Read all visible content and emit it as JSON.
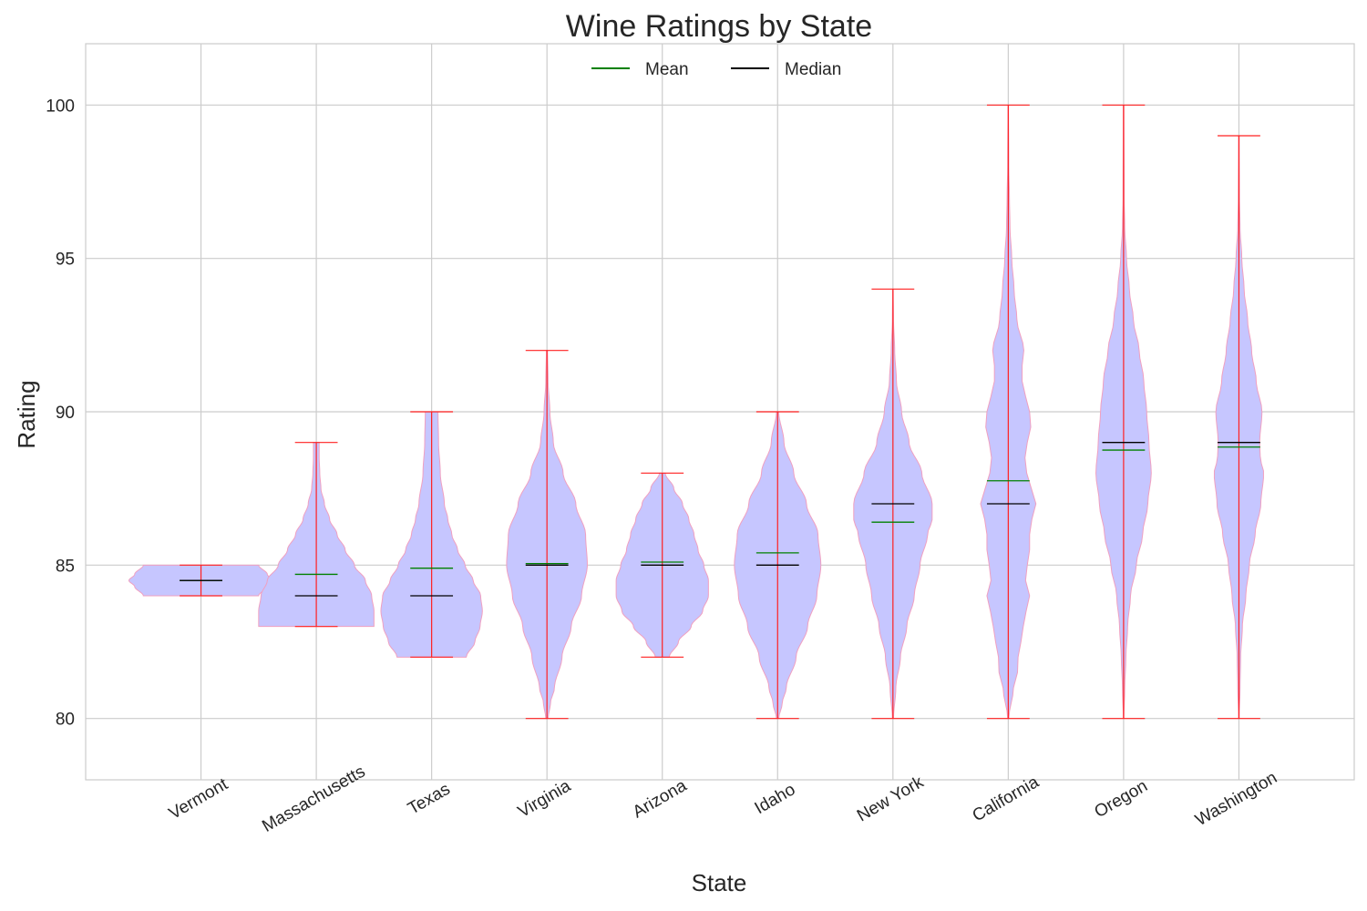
{
  "chart_data": {
    "type": "violin",
    "title": "Wine Ratings by State",
    "xlabel": "State",
    "ylabel": "Rating",
    "ylim": [
      78,
      102
    ],
    "yticks": [
      80,
      85,
      90,
      95,
      100
    ],
    "grid": true,
    "legend": {
      "placement": "top-center",
      "entries": [
        {
          "label": "Mean",
          "color": "#008000"
        },
        {
          "label": "Median",
          "color": "#000000"
        }
      ]
    },
    "colors": {
      "body_fill": "#c6c6ff",
      "body_edge": "#f0a0c0",
      "extrema": "#ff2020",
      "mean": "#008000",
      "median": "#000000",
      "grid": "#cccccc"
    },
    "categories": [
      "Vermont",
      "Massachusetts",
      "Texas",
      "Virginia",
      "Arizona",
      "Idaho",
      "New York",
      "California",
      "Oregon",
      "Washington"
    ],
    "series": [
      {
        "min": 84,
        "max": 85,
        "mean": 84.5,
        "median": 84.5,
        "density": [
          [
            84.0,
            1.0
          ],
          [
            84.3,
            1.15
          ],
          [
            84.5,
            1.25
          ],
          [
            84.7,
            1.15
          ],
          [
            85.0,
            1.0
          ]
        ]
      },
      {
        "min": 83,
        "max": 89,
        "mean": 84.7,
        "median": 84,
        "density": [
          [
            83.0,
            1.0
          ],
          [
            83.5,
            1.0
          ],
          [
            84.0,
            0.96
          ],
          [
            84.5,
            0.85
          ],
          [
            85.0,
            0.66
          ],
          [
            85.5,
            0.5
          ],
          [
            86.0,
            0.36
          ],
          [
            86.5,
            0.23
          ],
          [
            87.0,
            0.14
          ],
          [
            87.5,
            0.08
          ],
          [
            88.0,
            0.06
          ],
          [
            88.5,
            0.05
          ],
          [
            89.0,
            0.05
          ]
        ]
      },
      {
        "min": 82,
        "max": 90,
        "mean": 84.9,
        "median": 84,
        "density": [
          [
            82.0,
            0.6
          ],
          [
            82.5,
            0.75
          ],
          [
            83.0,
            0.84
          ],
          [
            83.5,
            0.88
          ],
          [
            84.0,
            0.85
          ],
          [
            84.5,
            0.72
          ],
          [
            85.0,
            0.58
          ],
          [
            85.5,
            0.45
          ],
          [
            86.0,
            0.35
          ],
          [
            86.5,
            0.28
          ],
          [
            87.0,
            0.22
          ],
          [
            88.0,
            0.15
          ],
          [
            89.0,
            0.12
          ],
          [
            90.0,
            0.11
          ]
        ]
      },
      {
        "min": 80,
        "max": 92,
        "mean": 85.05,
        "median": 85,
        "density": [
          [
            80.0,
            0.02
          ],
          [
            80.5,
            0.06
          ],
          [
            81.0,
            0.13
          ],
          [
            82.0,
            0.26
          ],
          [
            83.0,
            0.42
          ],
          [
            84.0,
            0.6
          ],
          [
            85.0,
            0.7
          ],
          [
            86.0,
            0.67
          ],
          [
            87.0,
            0.5
          ],
          [
            88.0,
            0.28
          ],
          [
            89.0,
            0.11
          ],
          [
            90.0,
            0.05
          ],
          [
            91.0,
            0.02
          ],
          [
            92.0,
            0.01
          ]
        ]
      },
      {
        "min": 82,
        "max": 88,
        "mean": 85.1,
        "median": 85,
        "density": [
          [
            82.0,
            0.12
          ],
          [
            82.5,
            0.28
          ],
          [
            83.0,
            0.5
          ],
          [
            83.5,
            0.7
          ],
          [
            84.0,
            0.8
          ],
          [
            84.5,
            0.8
          ],
          [
            85.0,
            0.72
          ],
          [
            85.5,
            0.62
          ],
          [
            86.0,
            0.55
          ],
          [
            86.5,
            0.46
          ],
          [
            87.0,
            0.35
          ],
          [
            87.5,
            0.2
          ],
          [
            88.0,
            0.05
          ]
        ]
      },
      {
        "min": 80,
        "max": 90,
        "mean": 85.4,
        "median": 85,
        "density": [
          [
            80.0,
            0.02
          ],
          [
            80.5,
            0.08
          ],
          [
            81.0,
            0.15
          ],
          [
            82.0,
            0.32
          ],
          [
            83.0,
            0.52
          ],
          [
            84.0,
            0.68
          ],
          [
            85.0,
            0.75
          ],
          [
            86.0,
            0.7
          ],
          [
            87.0,
            0.5
          ],
          [
            88.0,
            0.28
          ],
          [
            89.0,
            0.11
          ],
          [
            90.0,
            0.02
          ]
        ]
      },
      {
        "min": 80,
        "max": 94,
        "mean": 86.4,
        "median": 87,
        "density": [
          [
            80.0,
            0.01
          ],
          [
            81.0,
            0.05
          ],
          [
            82.0,
            0.13
          ],
          [
            83.0,
            0.24
          ],
          [
            84.0,
            0.37
          ],
          [
            85.0,
            0.47
          ],
          [
            86.0,
            0.6
          ],
          [
            86.5,
            0.68
          ],
          [
            87.0,
            0.68
          ],
          [
            88.0,
            0.5
          ],
          [
            89.0,
            0.28
          ],
          [
            90.0,
            0.15
          ],
          [
            91.0,
            0.06
          ],
          [
            92.0,
            0.03
          ],
          [
            93.0,
            0.01
          ],
          [
            94.0,
            0.005
          ]
        ]
      },
      {
        "min": 80,
        "max": 100,
        "mean": 87.75,
        "median": 87,
        "density": [
          [
            80.0,
            0.01
          ],
          [
            81.0,
            0.09
          ],
          [
            81.5,
            0.16
          ],
          [
            82.0,
            0.17
          ],
          [
            82.5,
            0.22
          ],
          [
            83.0,
            0.26
          ],
          [
            83.5,
            0.31
          ],
          [
            84.0,
            0.37
          ],
          [
            84.5,
            0.3
          ],
          [
            85.0,
            0.33
          ],
          [
            85.5,
            0.37
          ],
          [
            86.0,
            0.37
          ],
          [
            86.5,
            0.41
          ],
          [
            87.0,
            0.48
          ],
          [
            87.5,
            0.4
          ],
          [
            88.0,
            0.32
          ],
          [
            88.5,
            0.29
          ],
          [
            89.0,
            0.33
          ],
          [
            89.5,
            0.39
          ],
          [
            90.0,
            0.37
          ],
          [
            90.5,
            0.3
          ],
          [
            91.0,
            0.24
          ],
          [
            91.5,
            0.24
          ],
          [
            92.0,
            0.27
          ],
          [
            93.0,
            0.15
          ],
          [
            94.0,
            0.1
          ],
          [
            95.0,
            0.06
          ],
          [
            96.0,
            0.03
          ],
          [
            97.0,
            0.02
          ],
          [
            98.0,
            0.01
          ],
          [
            100.0,
            0.005
          ]
        ]
      },
      {
        "min": 80,
        "max": 100,
        "mean": 88.75,
        "median": 89,
        "density": [
          [
            80.0,
            0.005
          ],
          [
            81.0,
            0.02
          ],
          [
            82.0,
            0.04
          ],
          [
            83.0,
            0.07
          ],
          [
            84.0,
            0.12
          ],
          [
            85.0,
            0.22
          ],
          [
            86.0,
            0.33
          ],
          [
            87.0,
            0.42
          ],
          [
            88.0,
            0.48
          ],
          [
            89.0,
            0.44
          ],
          [
            90.0,
            0.4
          ],
          [
            91.0,
            0.35
          ],
          [
            92.0,
            0.27
          ],
          [
            93.0,
            0.17
          ],
          [
            94.0,
            0.1
          ],
          [
            95.0,
            0.05
          ],
          [
            96.0,
            0.02
          ],
          [
            97.0,
            0.01
          ],
          [
            100.0,
            0.005
          ]
        ]
      },
      {
        "min": 80,
        "max": 99,
        "mean": 88.85,
        "median": 89,
        "density": [
          [
            80.0,
            0.005
          ],
          [
            81.0,
            0.02
          ],
          [
            82.0,
            0.03
          ],
          [
            83.0,
            0.06
          ],
          [
            84.0,
            0.12
          ],
          [
            85.0,
            0.18
          ],
          [
            86.0,
            0.28
          ],
          [
            87.0,
            0.38
          ],
          [
            88.0,
            0.43
          ],
          [
            88.5,
            0.37
          ],
          [
            89.0,
            0.36
          ],
          [
            90.0,
            0.4
          ],
          [
            91.0,
            0.3
          ],
          [
            92.0,
            0.22
          ],
          [
            93.0,
            0.15
          ],
          [
            94.0,
            0.09
          ],
          [
            95.0,
            0.05
          ],
          [
            96.0,
            0.02
          ],
          [
            97.0,
            0.01
          ],
          [
            99.0,
            0.005
          ]
        ]
      }
    ]
  }
}
